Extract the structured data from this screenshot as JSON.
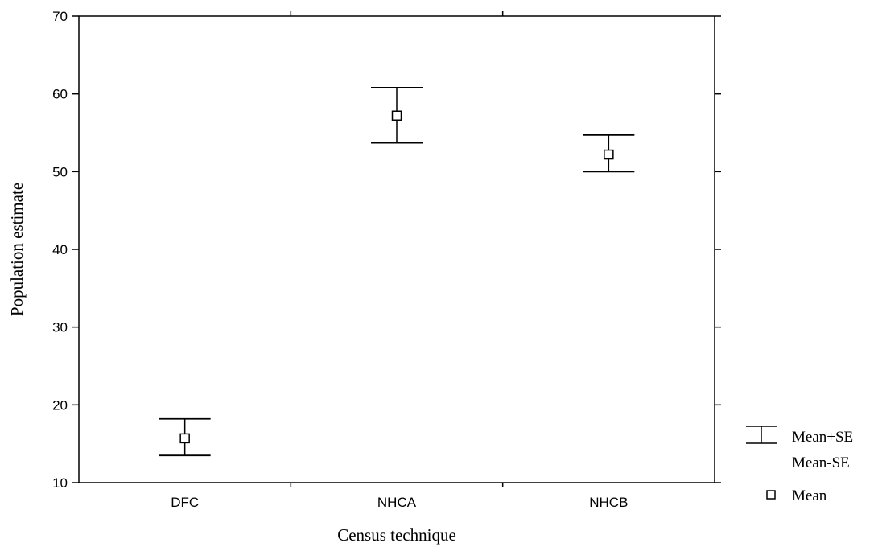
{
  "chart_data": {
    "type": "scatter",
    "xlabel": "Census technique",
    "ylabel": "Population estimate",
    "categories": [
      "DFC",
      "NHCA",
      "NHCB"
    ],
    "ylim": [
      10,
      70
    ],
    "yticks": [
      10,
      20,
      30,
      40,
      50,
      60,
      70
    ],
    "grid": false,
    "series": [
      {
        "name": "Mean",
        "values": [
          15.7,
          57.2,
          52.2
        ]
      },
      {
        "name": "Mean+SE",
        "values": [
          18.2,
          60.8,
          54.7
        ]
      },
      {
        "name": "Mean-SE",
        "values": [
          13.5,
          53.7,
          50.0
        ]
      }
    ],
    "legend": {
      "placement": "bottom-right",
      "entries": [
        {
          "label_top": "Mean+SE",
          "label_bottom": "Mean-SE"
        },
        {
          "label": "Mean"
        }
      ]
    }
  }
}
